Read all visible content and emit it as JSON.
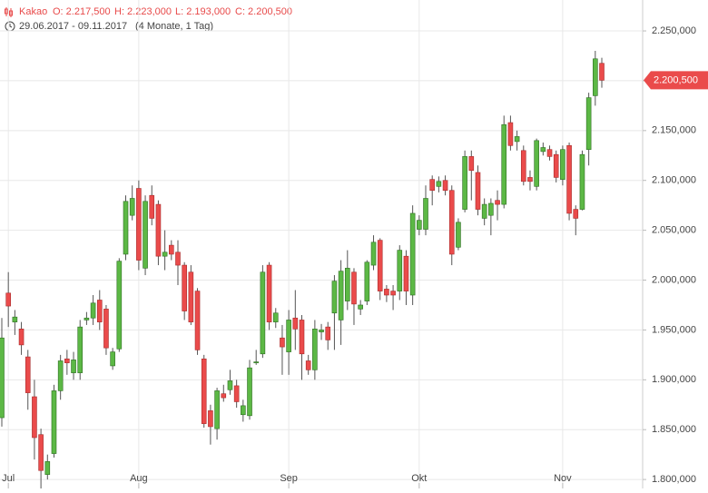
{
  "chart_data": {
    "type": "candlestick",
    "title": "Kakao",
    "ohlc_labels": [
      "O: 2.217,500",
      "H: 2.223,000",
      "L: 2.193,000",
      "C: 2.200,500"
    ],
    "subtitle": "29.06.2017 - 09.11.2017",
    "period": "(4 Monate, 1 Tag)",
    "categories": [
      null,
      "Jul",
      null,
      null,
      null,
      null,
      null,
      null,
      null,
      null,
      null,
      null,
      null,
      null,
      null,
      null,
      null,
      null,
      null,
      null,
      null,
      "Aug",
      null,
      null,
      null,
      null,
      null,
      null,
      null,
      null,
      null,
      null,
      null,
      null,
      null,
      null,
      null,
      null,
      null,
      null,
      null,
      null,
      null,
      null,
      "Sep",
      null,
      null,
      null,
      null,
      null,
      null,
      null,
      null,
      null,
      null,
      null,
      null,
      null,
      null,
      null,
      null,
      null,
      null,
      null,
      "Okt",
      null,
      null,
      null,
      null,
      null,
      null,
      null,
      null,
      null,
      null,
      null,
      null,
      null,
      null,
      null,
      null,
      null,
      null,
      null,
      null,
      null,
      "Nov",
      null,
      null,
      null,
      null,
      null,
      null
    ],
    "open": [
      1862000,
      1987000,
      1958000,
      1951000,
      1923000,
      1883000,
      1845000,
      1805000,
      1826000,
      1889000,
      1921000,
      1907000,
      1907000,
      1960000,
      1962000,
      1980000,
      1971000,
      1914000,
      1931000,
      2026000,
      2065000,
      2092000,
      2012000,
      2085000,
      2076000,
      2024000,
      2035000,
      2028000,
      2015000,
      2008000,
      1989000,
      1921000,
      1869000,
      1851000,
      1886000,
      1890000,
      1894000,
      1865000,
      1864000,
      1917000,
      1926000,
      2015000,
      1958000,
      1942000,
      1928000,
      1962000,
      1960000,
      1919000,
      1910000,
      1948000,
      1953000,
      1967000,
      1960000,
      1979000,
      2008000,
      1971000,
      1979000,
      2015000,
      2040000,
      1991000,
      1989000,
      1989000,
      2024000,
      1985000,
      2051000,
      2051000,
      2101000,
      2094000,
      2100000,
      2090000,
      2033000,
      2071000,
      2124000,
      2108000,
      2062000,
      2065000,
      2080000,
      2076000,
      2158000,
      2139000,
      2130000,
      2103000,
      2094000,
      2129000,
      2131000,
      2126000,
      2101000,
      2135000,
      2071000,
      2071000,
      2131000,
      2185000,
      2217500
    ],
    "high": [
      1962000,
      2008000,
      1970000,
      1958000,
      1930000,
      1900000,
      1851000,
      1825000,
      1895000,
      1925000,
      1930000,
      1928000,
      1960000,
      1968000,
      1985000,
      1990000,
      1975000,
      1932000,
      2022000,
      2085000,
      2095000,
      2100000,
      2085000,
      2095000,
      2080000,
      2050000,
      2040000,
      2040000,
      2018000,
      2015000,
      1992000,
      1925000,
      1875000,
      1892000,
      1895000,
      1910000,
      1900000,
      1880000,
      1920000,
      1930000,
      2015000,
      2018000,
      1972000,
      1955000,
      1970000,
      1990000,
      1965000,
      1925000,
      1960000,
      1956000,
      1958000,
      2005000,
      2020000,
      2030000,
      2012000,
      1980000,
      2020000,
      2045000,
      2042000,
      1995000,
      1995000,
      2035000,
      2030000,
      2075000,
      2065000,
      2095000,
      2105000,
      2104000,
      2105000,
      2095000,
      2062000,
      2130000,
      2130000,
      2115000,
      2082000,
      2082000,
      2090000,
      2165000,
      2165000,
      2150000,
      2135000,
      2110000,
      2142000,
      2138000,
      2135000,
      2130000,
      2135000,
      2138000,
      2075000,
      2130000,
      2188000,
      2230000,
      2223000
    ],
    "low": [
      1853000,
      1953000,
      1945000,
      1925000,
      1870000,
      1820000,
      1790000,
      1800000,
      1822000,
      1880000,
      1905000,
      1900000,
      1900000,
      1955000,
      1955000,
      1950000,
      1925000,
      1910000,
      1928000,
      2020000,
      2060000,
      2010000,
      2005000,
      2055000,
      2015000,
      2010000,
      2020000,
      1995000,
      1960000,
      1955000,
      1925000,
      1852000,
      1835000,
      1840000,
      1878000,
      1885000,
      1872000,
      1858000,
      1860000,
      1915000,
      1922000,
      1950000,
      1952000,
      1905000,
      1905000,
      1930000,
      1900000,
      1905000,
      1900000,
      1940000,
      1930000,
      1930000,
      1935000,
      1970000,
      1955000,
      1965000,
      1975000,
      2010000,
      1980000,
      1978000,
      1970000,
      1980000,
      1975000,
      1975000,
      2045000,
      2045000,
      2075000,
      2088000,
      2085000,
      2015000,
      2030000,
      2068000,
      2080000,
      2065000,
      2055000,
      2045000,
      2060000,
      2072000,
      2130000,
      2130000,
      2095000,
      2090000,
      2090000,
      2125000,
      2120000,
      2098000,
      2095000,
      2060000,
      2045000,
      2070000,
      2115000,
      2175000,
      2193000
    ],
    "close": [
      1942000,
      1974000,
      1963000,
      1935000,
      1887000,
      1842000,
      1809000,
      1818000,
      1889000,
      1919000,
      1917000,
      1920000,
      1953000,
      1962000,
      1977000,
      1958000,
      1932000,
      1928000,
      2019000,
      2079000,
      2082000,
      2020000,
      2079000,
      2062000,
      2024000,
      2028000,
      2026000,
      2015000,
      1969000,
      1958000,
      1930000,
      1856000,
      1853000,
      1889000,
      1882000,
      1899000,
      1878000,
      1874000,
      1912000,
      1918000,
      2008000,
      1958000,
      1967000,
      1933000,
      1960000,
      1951000,
      1926000,
      1910000,
      1951000,
      1950000,
      1940000,
      1999000,
      2009000,
      2012000,
      1976000,
      1975000,
      2018000,
      2038000,
      1989000,
      1985000,
      1985000,
      2030000,
      1989000,
      2067000,
      2060000,
      2082000,
      2090000,
      2099000,
      2090000,
      2026000,
      2058000,
      2124000,
      2110000,
      2071000,
      2076000,
      2077000,
      2076000,
      2156000,
      2135000,
      2144000,
      2099000,
      2099000,
      2140000,
      2133000,
      2124000,
      2103000,
      2131000,
      2067000,
      2062000,
      2126000,
      2183000,
      2222000,
      2200500
    ],
    "up_color": "#5cb845",
    "down_color": "#ea4b4b",
    "last_price": {
      "value": 2200500,
      "label": "2.200,500"
    },
    "ylim": [
      1791000,
      2281000
    ],
    "yticks": [
      {
        "value": 1800000,
        "label": "1.800,000"
      },
      {
        "value": 1850000,
        "label": "1.850,000"
      },
      {
        "value": 1900000,
        "label": "1.900,000"
      },
      {
        "value": 1950000,
        "label": "1.950,000"
      },
      {
        "value": 2000000,
        "label": "2.000,000"
      },
      {
        "value": 2050000,
        "label": "2.050,000"
      },
      {
        "value": 2100000,
        "label": "2.100,000"
      },
      {
        "value": 2150000,
        "label": "2.150,000"
      },
      {
        "value": 2200000,
        "label": "2.200,000"
      },
      {
        "value": 2250000,
        "label": "2.250,000"
      }
    ],
    "grid": true
  }
}
